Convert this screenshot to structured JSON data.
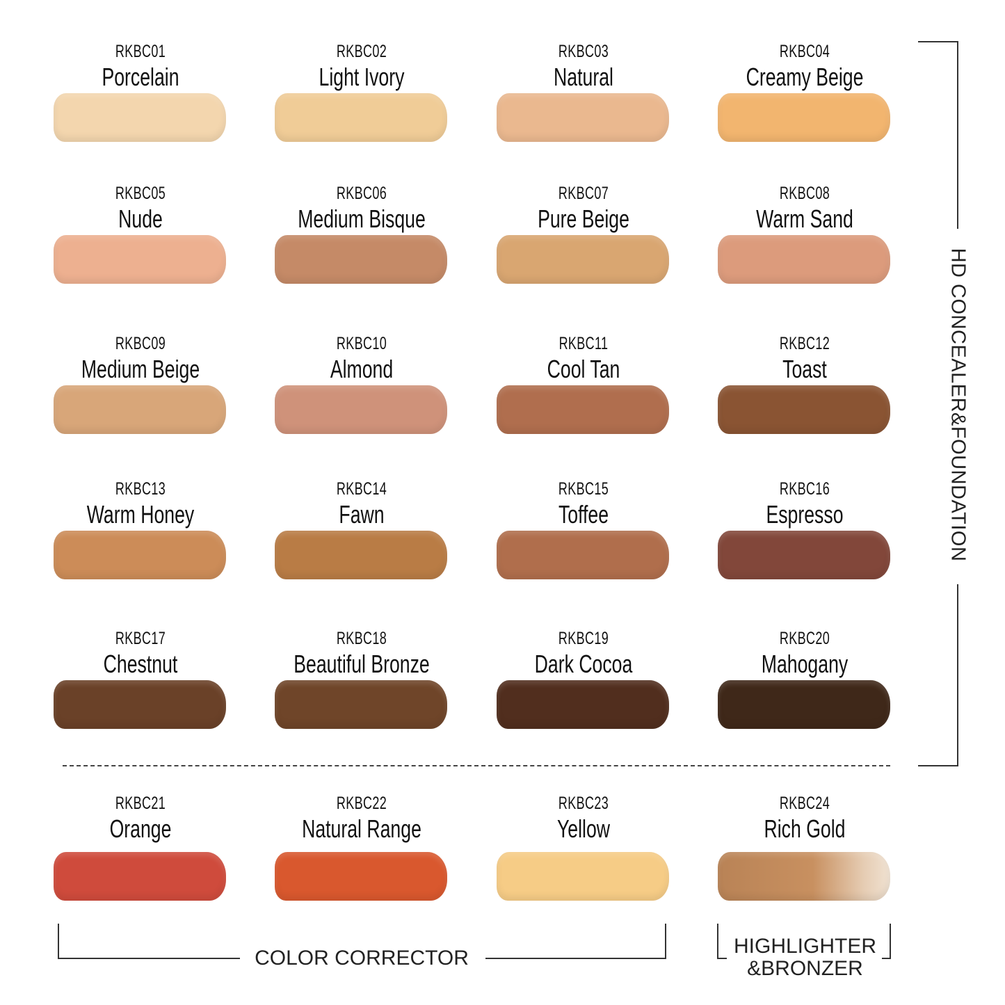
{
  "shades": [
    {
      "code": "RKBC01",
      "name": "Porcelain",
      "color": "#f3d6ae"
    },
    {
      "code": "RKBC02",
      "name": "Light Ivory",
      "color": "#f0cc97"
    },
    {
      "code": "RKBC03",
      "name": "Natural",
      "color": "#eab88f"
    },
    {
      "code": "RKBC04",
      "name": "Creamy Beige",
      "color": "#f2b56f"
    },
    {
      "code": "RKBC05",
      "name": "Nude",
      "color": "#edb090"
    },
    {
      "code": "RKBC06",
      "name": "Medium Bisque",
      "color": "#c58a67"
    },
    {
      "code": "RKBC07",
      "name": "Pure Beige",
      "color": "#d9a671"
    },
    {
      "code": "RKBC08",
      "name": "Warm Sand",
      "color": "#dc9b7c"
    },
    {
      "code": "RKBC09",
      "name": "Medium Beige",
      "color": "#d8a679"
    },
    {
      "code": "RKBC10",
      "name": "Almond",
      "color": "#cf927a"
    },
    {
      "code": "RKBC11",
      "name": "Cool Tan",
      "color": "#b06e4e"
    },
    {
      "code": "RKBC12",
      "name": "Toast",
      "color": "#8a5433"
    },
    {
      "code": "RKBC13",
      "name": "Warm Honey",
      "color": "#cc8c58"
    },
    {
      "code": "RKBC14",
      "name": "Fawn",
      "color": "#b97c45"
    },
    {
      "code": "RKBC15",
      "name": "Toffee",
      "color": "#b06e4c"
    },
    {
      "code": "RKBC16",
      "name": "Espresso",
      "color": "#82473a"
    },
    {
      "code": "RKBC17",
      "name": "Chestnut",
      "color": "#6a4128"
    },
    {
      "code": "RKBC18",
      "name": "Beautiful Bronze",
      "color": "#6f4529"
    },
    {
      "code": "RKBC19",
      "name": "Dark Cocoa",
      "color": "#512e1e"
    },
    {
      "code": "RKBC20",
      "name": "Mahogany",
      "color": "#3f2819"
    },
    {
      "code": "RKBC21",
      "name": "Orange",
      "color": "#cf4b3c"
    },
    {
      "code": "RKBC22",
      "name": "Natural Range",
      "color": "#d9582e"
    },
    {
      "code": "RKBC23",
      "name": "Yellow",
      "color": "#f6cc86"
    },
    {
      "code": "RKBC24",
      "name": "Rich Gold",
      "color": "#b98356"
    }
  ],
  "groups": {
    "foundation": "HD CONCEALER&FOUNDATION",
    "corrector": "COLOR CORRECTOR",
    "highlighter_line1": "HIGHLIGHTER",
    "highlighter_line2": "&BRONZER"
  }
}
